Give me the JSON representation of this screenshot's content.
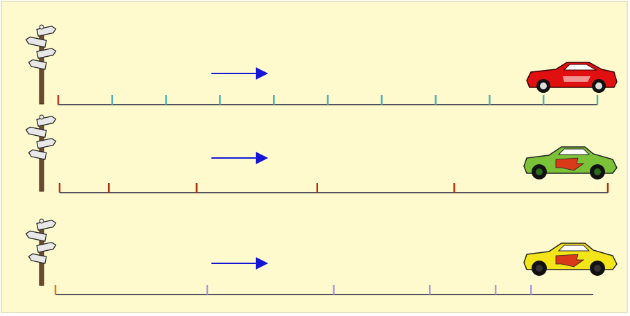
{
  "colors": {
    "panel_bg": "#FFFACD",
    "panel_border": "#E6E3C6",
    "track_line": "#1A1A3A",
    "arrow": "#1515D8",
    "start_tick": "#C0392B",
    "post": "#6B4A2E",
    "sign_face": "#E8E8E8",
    "sign_outline": "#222222"
  },
  "rows": [
    {
      "name": "row-constant-speed",
      "tick_color": "#4BB3B3",
      "start_tick_color": "#C0392B",
      "ticks_relative": [
        0,
        0.1,
        0.2,
        0.3,
        0.4,
        0.5,
        0.6,
        0.7,
        0.8,
        0.9,
        1.0
      ],
      "car": {
        "icon": "red-sports-car-icon",
        "body": "#E01010",
        "trim": "#FFFFFF",
        "window": "#FFFFFF"
      },
      "arrow_icon": "direction-arrow-icon"
    },
    {
      "name": "row-accelerating",
      "tick_color": "#B03010",
      "start_tick_color": "#B03010",
      "ticks_relative": [
        0,
        0.09,
        0.25,
        0.47,
        0.72,
        1.0
      ],
      "car": {
        "icon": "green-race-car-icon",
        "body": "#7CC238",
        "trim": "#D83A1A",
        "window": "#FFFFFF"
      },
      "arrow_icon": "direction-arrow-icon"
    },
    {
      "name": "row-decelerating",
      "tick_color": "#A99BD8",
      "start_tick_color": "#E07A10",
      "ticks_relative": [
        0,
        0.3,
        0.55,
        0.74,
        0.87,
        0.94
      ],
      "car": {
        "icon": "yellow-race-car-icon",
        "body": "#F4E51A",
        "trim": "#D83A1A",
        "window": "#FFFFFF"
      },
      "arrow_icon": "direction-arrow-icon"
    }
  ]
}
